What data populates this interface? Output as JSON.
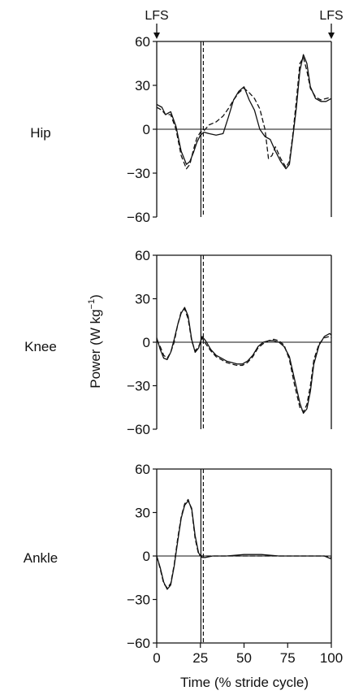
{
  "markers": {
    "left": "LFS",
    "right": "LFS"
  },
  "xlabel": "Time (% stride cycle)",
  "ylabel": "Power (W kg",
  "ylabel_sup": "−1",
  "ylabel_close": ")",
  "xticks": [
    "0",
    "25",
    "50",
    "75",
    "100"
  ],
  "yticks": [
    "60",
    "30",
    "0",
    "−30",
    "−60"
  ],
  "vline_x": 26,
  "colors": {
    "line": "#111111",
    "axes": "#111111",
    "background": "#ffffff"
  },
  "chart_data": [
    {
      "type": "line",
      "title": "Hip",
      "xlim": [
        0,
        100
      ],
      "ylim": [
        -60,
        60
      ],
      "grid": false,
      "series": [
        {
          "style": "solid",
          "x": [
            0,
            3,
            5,
            8,
            11,
            14,
            17,
            19,
            21,
            23,
            25,
            27,
            30,
            34,
            38,
            41,
            44,
            47,
            50,
            53,
            56,
            59,
            62,
            65,
            68,
            71,
            74,
            76,
            78,
            80,
            82,
            84,
            86,
            88,
            91,
            94,
            97,
            100
          ],
          "y": [
            17,
            15,
            10,
            12,
            2,
            -15,
            -24,
            -22,
            -16,
            -9,
            -4,
            -2,
            -3,
            -4,
            -3,
            8,
            20,
            26,
            29,
            20,
            13,
            0,
            -5,
            -7,
            -15,
            -22,
            -27,
            -24,
            -5,
            15,
            40,
            51,
            45,
            29,
            21,
            19,
            19,
            21
          ]
        },
        {
          "style": "dashed",
          "x": [
            0,
            3,
            5,
            8,
            11,
            14,
            17,
            19,
            21,
            23,
            25,
            27,
            30,
            34,
            38,
            41,
            44,
            47,
            50,
            53,
            56,
            59,
            62,
            64,
            66,
            68,
            71,
            74,
            76,
            78,
            80,
            82,
            84,
            86,
            88,
            91,
            94,
            97,
            100
          ],
          "y": [
            15,
            13,
            10,
            10,
            0,
            -18,
            -27,
            -24,
            -14,
            -6,
            -2,
            -1,
            3,
            5,
            9,
            14,
            20,
            25,
            28,
            25,
            21,
            14,
            0,
            -20,
            -18,
            -12,
            -20,
            -26,
            -22,
            -3,
            20,
            45,
            49,
            40,
            28,
            22,
            20,
            21,
            22
          ]
        }
      ]
    },
    {
      "type": "line",
      "title": "Knee",
      "xlim": [
        0,
        100
      ],
      "ylim": [
        -60,
        60
      ],
      "grid": false,
      "series": [
        {
          "style": "solid",
          "x": [
            0,
            2,
            4,
            6,
            8,
            10,
            12,
            14,
            16,
            18,
            20,
            22,
            24,
            26,
            28,
            31,
            34,
            37,
            40,
            43,
            46,
            49,
            52,
            55,
            58,
            61,
            64,
            67,
            70,
            73,
            76,
            79,
            82,
            84,
            86,
            88,
            90,
            93,
            96,
            99,
            100
          ],
          "y": [
            3,
            -5,
            -11,
            -12,
            -7,
            2,
            12,
            20,
            24,
            18,
            2,
            -7,
            -4,
            4,
            1,
            -5,
            -9,
            -11,
            -13,
            -14,
            -15,
            -15,
            -13,
            -9,
            -3,
            0,
            1,
            1,
            0,
            -3,
            -10,
            -26,
            -42,
            -49,
            -46,
            -34,
            -15,
            -2,
            4,
            6,
            5
          ]
        },
        {
          "style": "dashed",
          "x": [
            0,
            2,
            4,
            6,
            8,
            10,
            12,
            14,
            16,
            18,
            20,
            22,
            24,
            26,
            28,
            31,
            34,
            37,
            40,
            43,
            46,
            49,
            52,
            55,
            58,
            61,
            64,
            67,
            70,
            73,
            76,
            79,
            82,
            84,
            86,
            88,
            90,
            93,
            96,
            99,
            100
          ],
          "y": [
            2,
            -3,
            -9,
            -11,
            -7,
            0,
            12,
            21,
            23,
            16,
            1,
            -6,
            -3,
            3,
            -1,
            -6,
            -10,
            -12,
            -14,
            -15,
            -16,
            -16,
            -14,
            -10,
            -4,
            -1,
            1,
            2,
            1,
            -2,
            -12,
            -30,
            -45,
            -48,
            -43,
            -30,
            -12,
            -1,
            3,
            4,
            3
          ]
        }
      ]
    },
    {
      "type": "line",
      "title": "Ankle",
      "xlim": [
        0,
        100
      ],
      "ylim": [
        -60,
        60
      ],
      "grid": false,
      "series": [
        {
          "style": "solid",
          "x": [
            0,
            2,
            4,
            6,
            8,
            10,
            12,
            14,
            16,
            18,
            20,
            22,
            24,
            26,
            28,
            32,
            40,
            50,
            60,
            70,
            80,
            90,
            96,
            100
          ],
          "y": [
            0,
            -8,
            -18,
            -23,
            -20,
            -7,
            10,
            26,
            35,
            38,
            33,
            14,
            2,
            -1,
            -1,
            0,
            0,
            1,
            1,
            0,
            0,
            0,
            0,
            -2
          ]
        },
        {
          "style": "dashed",
          "x": [
            0,
            2,
            4,
            6,
            8,
            10,
            12,
            14,
            16,
            18,
            20,
            22,
            24,
            26,
            28,
            32,
            40,
            50,
            60,
            70,
            80,
            90,
            96,
            100
          ],
          "y": [
            0,
            -9,
            -19,
            -22,
            -19,
            -6,
            12,
            27,
            36,
            39,
            32,
            12,
            1,
            0,
            0,
            0,
            0,
            0,
            0,
            0,
            0,
            0,
            0,
            -1
          ]
        }
      ]
    }
  ]
}
